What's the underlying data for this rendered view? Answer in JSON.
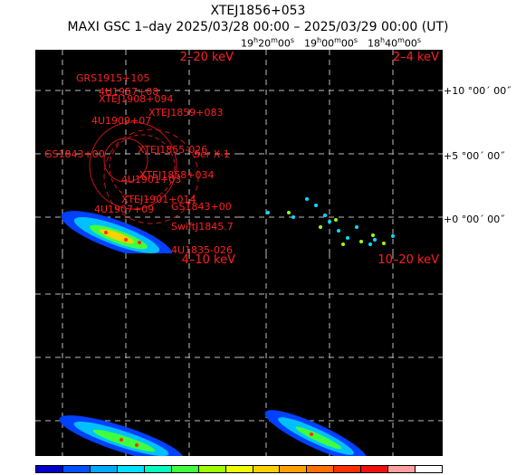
{
  "header": {
    "title": "XTEJ1856+053",
    "subtitle": "MAXI GSC 1–day 2025/03/28 00:00 – 2025/03/29 00:00 (UT)"
  },
  "ra_labels": [
    {
      "h": "19",
      "hs": "h",
      "m": "20",
      "ms": "m",
      "s": "00",
      "ss": "s"
    },
    {
      "h": "19",
      "hs": "h",
      "m": "00",
      "ms": "m",
      "s": "00",
      "ss": "s"
    },
    {
      "h": "18",
      "hs": "h",
      "m": "40",
      "ms": "m",
      "s": "00",
      "ss": "s"
    }
  ],
  "dec_labels": [
    "+10 °00´ 00˝",
    "+5 °00´ 00˝",
    "+0 °00´ 00˝"
  ],
  "panels": {
    "p1": "2–20 keV",
    "p2": "2–4 keV",
    "p3": "4–10 keV",
    "p4": "10–20 keV"
  },
  "sources": [
    "GRS1915+105",
    "4U1957+08",
    "XTEJ1908+094",
    "XTEJ1859+083",
    "4U1909+07",
    "XTEJ1855-026",
    "Ser X-1",
    "GS1843+00",
    "XTEJ1858+034",
    "4U1901+03",
    "XTEJ1901+014",
    "4U1907+09",
    "SwiftJ1845.7",
    "4U1835-026"
  ],
  "colors": {
    "label": "#ff2020",
    "grid": "#bbbbbb",
    "colorbar": [
      "#0000c8",
      "#0050ff",
      "#00a8ff",
      "#00e0ff",
      "#00ffc0",
      "#40ff40",
      "#a0ff00",
      "#f0ff00",
      "#ffd000",
      "#ffa000",
      "#ff7000",
      "#ff3000",
      "#f01010",
      "#ffa0a0",
      "#ffffff"
    ]
  }
}
